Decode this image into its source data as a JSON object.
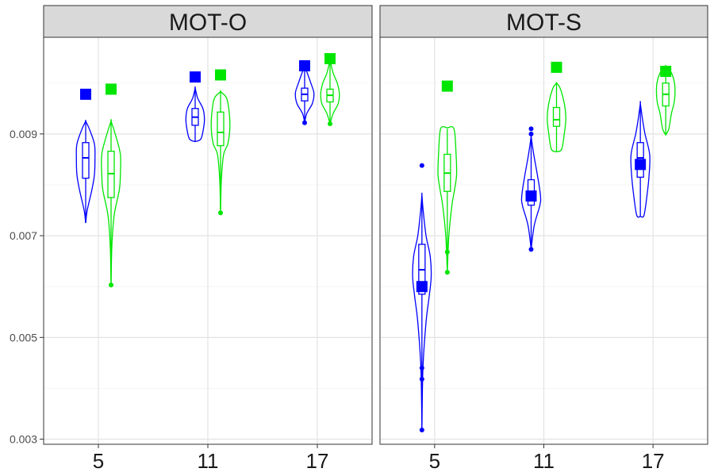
{
  "chart_data": {
    "type": "violin",
    "facets": [
      "MOT-O",
      "MOT-S"
    ],
    "categories": [
      "5",
      "11",
      "17"
    ],
    "ylim": [
      0.0029,
      0.0109
    ],
    "yticks": [
      "0.003",
      "0.005",
      "0.007",
      "0.009"
    ],
    "ytick_values": [
      0.003,
      0.005,
      0.007,
      0.009
    ],
    "series_colors": [
      "#0000ff",
      "#00e600"
    ],
    "panels": [
      {
        "facet": "MOT-O",
        "groups": [
          {
            "category": "5",
            "series": 0,
            "min": 0.00725,
            "q1": 0.00813,
            "median": 0.00853,
            "q3": 0.00883,
            "max": 0.00925,
            "marker": 0.00978,
            "outliers": [],
            "profile": [
              [
                0.00725,
                0.0
              ],
              [
                0.0075,
                0.15
              ],
              [
                0.0079,
                0.6
              ],
              [
                0.0082,
                0.85
              ],
              [
                0.0085,
                0.9
              ],
              [
                0.0088,
                0.85
              ],
              [
                0.0091,
                0.35
              ],
              [
                0.00925,
                0.0
              ]
            ]
          },
          {
            "category": "5",
            "series": 1,
            "min": 0.00603,
            "q1": 0.00775,
            "median": 0.00822,
            "q3": 0.00866,
            "max": 0.00925,
            "marker": 0.00988,
            "outliers": [
              0.00603
            ],
            "profile": [
              [
                0.00603,
                0.0
              ],
              [
                0.0068,
                0.08
              ],
              [
                0.0074,
                0.3
              ],
              [
                0.0079,
                0.8
              ],
              [
                0.0082,
                0.9
              ],
              [
                0.0086,
                0.9
              ],
              [
                0.009,
                0.4
              ],
              [
                0.00925,
                0.0
              ]
            ]
          },
          {
            "category": "11",
            "series": 0,
            "min": 0.00885,
            "q1": 0.00917,
            "median": 0.00933,
            "q3": 0.0095,
            "max": 0.0099,
            "marker": 0.01012,
            "outliers": [],
            "profile": [
              [
                0.00885,
                0.0
              ],
              [
                0.0089,
                0.55
              ],
              [
                0.0091,
                0.8
              ],
              [
                0.0093,
                0.9
              ],
              [
                0.0095,
                0.75
              ],
              [
                0.0097,
                0.25
              ],
              [
                0.0099,
                0.0
              ]
            ]
          },
          {
            "category": "11",
            "series": 1,
            "min": 0.00745,
            "q1": 0.00877,
            "median": 0.00903,
            "q3": 0.00943,
            "max": 0.00983,
            "marker": 0.01016,
            "outliers": [
              0.00745
            ],
            "profile": [
              [
                0.00745,
                0.0
              ],
              [
                0.0081,
                0.08
              ],
              [
                0.0086,
                0.3
              ],
              [
                0.0088,
                0.7
              ],
              [
                0.0091,
                0.9
              ],
              [
                0.0094,
                0.85
              ],
              [
                0.0097,
                0.6
              ],
              [
                0.00983,
                0.0
              ]
            ]
          },
          {
            "category": "17",
            "series": 0,
            "min": 0.00922,
            "q1": 0.00965,
            "median": 0.00978,
            "q3": 0.0099,
            "max": 0.01033,
            "marker": 0.01034,
            "outliers": [
              0.00922
            ],
            "profile": [
              [
                0.00922,
                0.0
              ],
              [
                0.0094,
                0.2
              ],
              [
                0.0096,
                0.75
              ],
              [
                0.0098,
                0.9
              ],
              [
                0.01,
                0.6
              ],
              [
                0.0102,
                0.25
              ],
              [
                0.01033,
                0.0
              ]
            ]
          },
          {
            "category": "17",
            "series": 1,
            "min": 0.0092,
            "q1": 0.00963,
            "median": 0.00976,
            "q3": 0.00988,
            "max": 0.01045,
            "marker": 0.01048,
            "outliers": [
              0.0092
            ],
            "profile": [
              [
                0.0092,
                0.0
              ],
              [
                0.0094,
                0.3
              ],
              [
                0.0096,
                0.8
              ],
              [
                0.0098,
                0.9
              ],
              [
                0.01,
                0.7
              ],
              [
                0.0102,
                0.3
              ],
              [
                0.01045,
                0.0
              ]
            ]
          }
        ]
      },
      {
        "facet": "MOT-S",
        "groups": [
          {
            "category": "5",
            "series": 0,
            "min": 0.00318,
            "q1": 0.00585,
            "median": 0.00633,
            "q3": 0.00683,
            "max": 0.0078,
            "marker": 0.006,
            "outliers": [
              0.00318,
              0.00418,
              0.0044,
              0.00838
            ],
            "profile": [
              [
                0.00318,
                0.0
              ],
              [
                0.0044,
                0.1
              ],
              [
                0.0053,
                0.4
              ],
              [
                0.0058,
                0.7
              ],
              [
                0.0062,
                0.9
              ],
              [
                0.0066,
                0.8
              ],
              [
                0.007,
                0.4
              ],
              [
                0.0075,
                0.12
              ],
              [
                0.0078,
                0.0
              ]
            ]
          },
          {
            "category": "5",
            "series": 1,
            "min": 0.00628,
            "q1": 0.00787,
            "median": 0.00823,
            "q3": 0.0086,
            "max": 0.0091,
            "marker": 0.00994,
            "outliers": [
              0.00628,
              0.00668
            ],
            "profile": [
              [
                0.00628,
                0.0
              ],
              [
                0.007,
                0.15
              ],
              [
                0.0076,
                0.45
              ],
              [
                0.0079,
                0.7
              ],
              [
                0.0082,
                0.9
              ],
              [
                0.0086,
                0.85
              ],
              [
                0.0091,
                0.65
              ],
              [
                0.00912,
                0.0
              ]
            ]
          },
          {
            "category": "11",
            "series": 0,
            "min": 0.00673,
            "q1": 0.0076,
            "median": 0.0078,
            "q3": 0.0081,
            "max": 0.00895,
            "marker": 0.00778,
            "outliers": [
              0.00673,
              0.009,
              0.0091
            ],
            "profile": [
              [
                0.00673,
                0.0
              ],
              [
                0.0072,
                0.3
              ],
              [
                0.0076,
                0.85
              ],
              [
                0.0078,
                0.9
              ],
              [
                0.0082,
                0.6
              ],
              [
                0.0086,
                0.25
              ],
              [
                0.00895,
                0.0
              ]
            ]
          },
          {
            "category": "11",
            "series": 1,
            "min": 0.00865,
            "q1": 0.00915,
            "median": 0.00928,
            "q3": 0.00952,
            "max": 0.01,
            "marker": 0.01031,
            "outliers": [],
            "profile": [
              [
                0.00865,
                0.0
              ],
              [
                0.0087,
                0.5
              ],
              [
                0.009,
                0.75
              ],
              [
                0.0093,
                0.9
              ],
              [
                0.0096,
                0.75
              ],
              [
                0.0099,
                0.35
              ],
              [
                0.01,
                0.0
              ]
            ]
          },
          {
            "category": "17",
            "series": 0,
            "min": 0.00738,
            "q1": 0.00815,
            "median": 0.00853,
            "q3": 0.00883,
            "max": 0.0096,
            "marker": 0.0084,
            "outliers": [],
            "profile": [
              [
                0.00738,
                0.0
              ],
              [
                0.0074,
                0.35
              ],
              [
                0.0078,
                0.65
              ],
              [
                0.0082,
                0.85
              ],
              [
                0.0086,
                0.9
              ],
              [
                0.009,
                0.45
              ],
              [
                0.0093,
                0.2
              ],
              [
                0.0096,
                0.0
              ]
            ]
          },
          {
            "category": "17",
            "series": 1,
            "min": 0.00898,
            "q1": 0.00955,
            "median": 0.00978,
            "q3": 0.01,
            "max": 0.01033,
            "marker": 0.01023,
            "outliers": [],
            "profile": [
              [
                0.00898,
                0.0
              ],
              [
                0.0091,
                0.3
              ],
              [
                0.0094,
                0.55
              ],
              [
                0.0096,
                0.8
              ],
              [
                0.0098,
                0.9
              ],
              [
                0.01,
                0.85
              ],
              [
                0.0102,
                0.55
              ],
              [
                0.01033,
                0.0
              ]
            ]
          }
        ]
      }
    ],
    "grid": true,
    "legend": "none"
  }
}
